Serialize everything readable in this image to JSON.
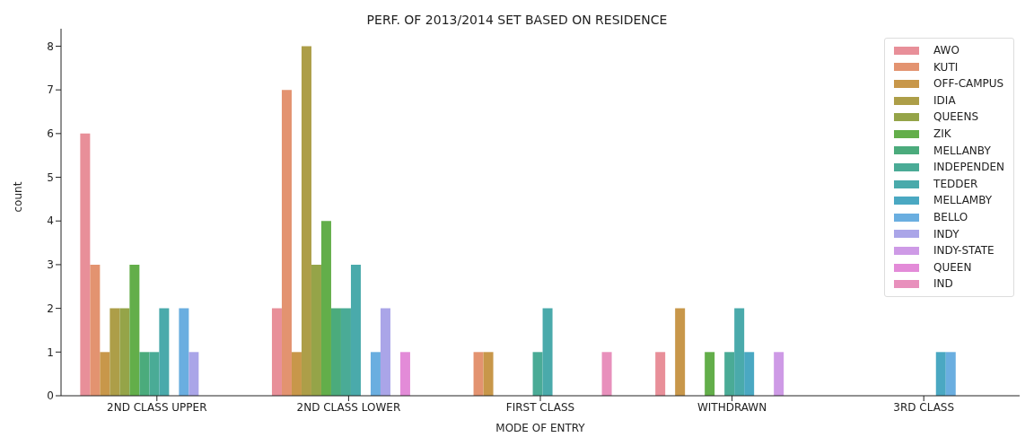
{
  "chart_data": {
    "type": "bar",
    "title": "PERF. OF 2013/2014 SET BASED ON RESIDENCE",
    "xlabel": "MODE OF ENTRY",
    "ylabel": "count",
    "categories": [
      "2ND CLASS UPPER",
      "2ND CLASS LOWER",
      "FIRST CLASS",
      "WITHDRAWN",
      "3RD CLASS"
    ],
    "series": [
      {
        "name": "AWO",
        "color": "#e88f99",
        "values": [
          6,
          2,
          null,
          1,
          null
        ]
      },
      {
        "name": "KUTI",
        "color": "#e39370",
        "values": [
          3,
          7,
          1,
          null,
          null
        ]
      },
      {
        "name": "OFF-CAMPUS",
        "color": "#c8974a",
        "values": [
          1,
          1,
          1,
          2,
          null
        ]
      },
      {
        "name": "IDIA",
        "color": "#ad9e48",
        "values": [
          2,
          8,
          null,
          null,
          null
        ]
      },
      {
        "name": "QUEENS",
        "color": "#95a448",
        "values": [
          2,
          3,
          null,
          null,
          null
        ]
      },
      {
        "name": "ZIK",
        "color": "#63ae4a",
        "values": [
          3,
          4,
          null,
          1,
          null
        ]
      },
      {
        "name": "MELLANBY",
        "color": "#4bab7c",
        "values": [
          1,
          2,
          null,
          null,
          null
        ]
      },
      {
        "name": "INDEPENDEN",
        "color": "#4aab96",
        "values": [
          1,
          2,
          1,
          1,
          null
        ]
      },
      {
        "name": "TEDDER",
        "color": "#4aaaab",
        "values": [
          2,
          3,
          2,
          2,
          null
        ]
      },
      {
        "name": "MELLAMBY",
        "color": "#4aa8c2",
        "values": [
          null,
          null,
          null,
          1,
          1
        ]
      },
      {
        "name": "BELLO",
        "color": "#6aaee0",
        "values": [
          2,
          1,
          null,
          null,
          1
        ]
      },
      {
        "name": "INDY",
        "color": "#aaa5e8",
        "values": [
          1,
          2,
          null,
          null,
          null
        ]
      },
      {
        "name": "INDY-STATE",
        "color": "#ce9ae6",
        "values": [
          null,
          null,
          null,
          1,
          null
        ]
      },
      {
        "name": "QUEEN",
        "color": "#e38bd8",
        "values": [
          null,
          1,
          null,
          null,
          null
        ]
      },
      {
        "name": "IND",
        "color": "#e890bc",
        "values": [
          null,
          null,
          1,
          null,
          null
        ]
      }
    ],
    "ylim": [
      0,
      8.4
    ],
    "yticks": [
      0,
      1,
      2,
      3,
      4,
      5,
      6,
      7,
      8
    ],
    "grid": false,
    "legend": "top right"
  }
}
